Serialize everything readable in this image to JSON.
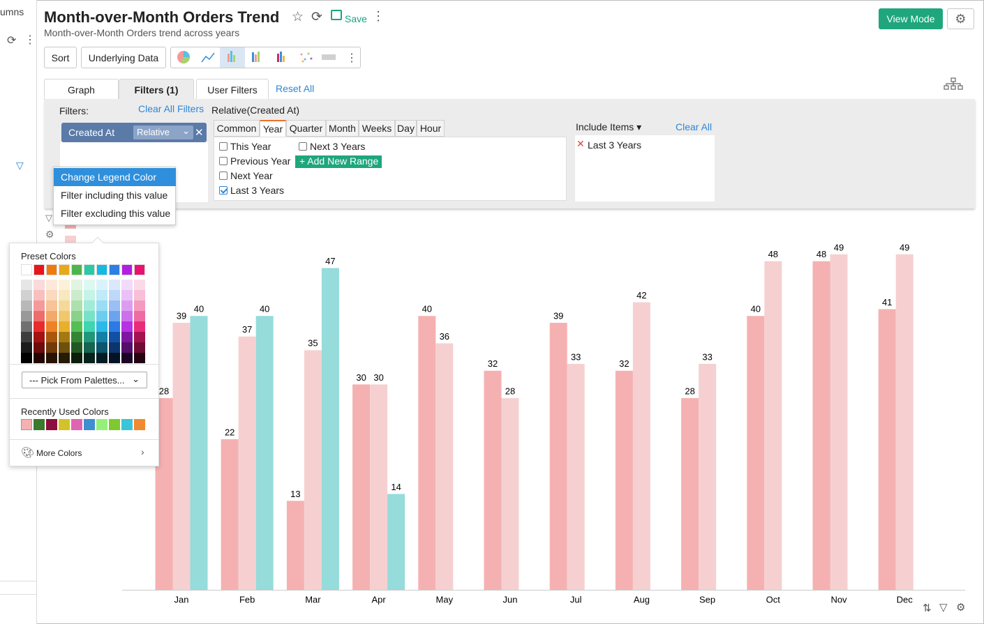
{
  "sidebar": {
    "label": "umns"
  },
  "header": {
    "title": "Month-over-Month Orders Trend",
    "subtitle": "Month-over-Month Orders trend across years",
    "save": "Save",
    "view_mode": "View Mode"
  },
  "toolbar": {
    "sort": "Sort",
    "underlying_data": "Underlying Data"
  },
  "tabs": [
    "Graph",
    "Filters (1)",
    "User Filters"
  ],
  "reset_all": "Reset All",
  "filters": {
    "label": "Filters:",
    "clear_all_filters": "Clear All Filters",
    "field_title": "Relative(Created At)",
    "chip": {
      "field": "Created At",
      "mode": "Relative"
    },
    "period_tabs": [
      "Common",
      "Year",
      "Quarter",
      "Month",
      "Weeks",
      "Day",
      "Hour"
    ],
    "options": [
      {
        "label": "This Year",
        "checked": false
      },
      {
        "label": "Next 3 Years",
        "checked": false
      },
      {
        "label": "Previous Year",
        "checked": false
      },
      {
        "label": "Next Year",
        "checked": false
      },
      {
        "label": "Last 3 Years",
        "checked": true
      }
    ],
    "add_range": "Add New Range",
    "include_items": {
      "label": "Include Items",
      "clear_all": "Clear All",
      "items": [
        "Last 3 Years"
      ]
    }
  },
  "context_menu": {
    "items": [
      "Change Legend Color",
      "Filter including this value",
      "Filter excluding this value"
    ]
  },
  "color_picker": {
    "preset_title": "Preset Colors",
    "palette_select": "--- Pick From Palettes...",
    "recent_title": "Recently Used Colors",
    "more_colors": "More Colors"
  },
  "chart_data": {
    "type": "bar",
    "categories": [
      "Jan",
      "Feb",
      "Mar",
      "Apr",
      "May",
      "Jun",
      "Jul",
      "Aug",
      "Sep",
      "Oct",
      "Nov",
      "Dec"
    ],
    "series": [
      {
        "color": "#f5b1b1",
        "values": [
          28,
          22,
          13,
          30,
          40,
          32,
          39,
          32,
          28,
          40,
          48,
          41
        ]
      },
      {
        "color": "#f6d0d0",
        "values": [
          39,
          37,
          35,
          30,
          36,
          28,
          33,
          42,
          33,
          48,
          49,
          49
        ]
      },
      {
        "color": "#95dcdb",
        "values": [
          40,
          40,
          47,
          14,
          null,
          null,
          null,
          null,
          null,
          null,
          null,
          null
        ]
      }
    ],
    "ylim": [
      0,
      50
    ]
  }
}
